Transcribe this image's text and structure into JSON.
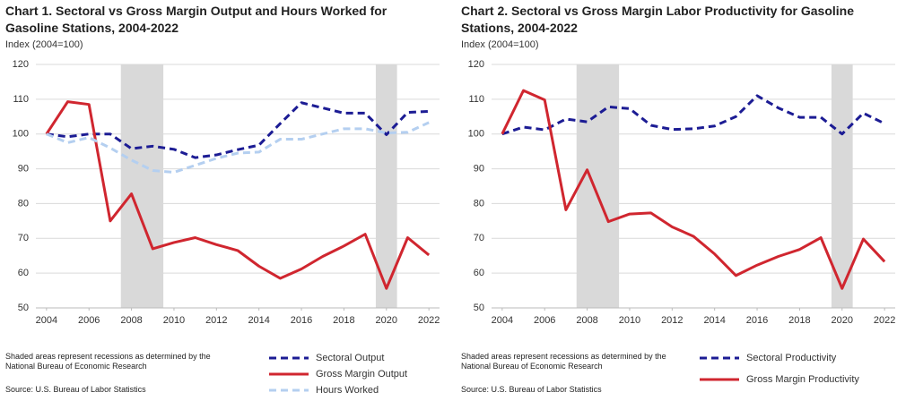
{
  "chart_data": [
    {
      "type": "line",
      "title": "Chart 1. Sectoral vs Gross Margin Output and Hours Worked for Gasoline Stations, 2004-2022",
      "y_label": "Index (2004=100)",
      "note": "Shaded areas represent recessions as determined by the National Bureau of Economic Research",
      "source": "Source: U.S. Bureau of Labor Statistics",
      "x": [
        2004,
        2005,
        2006,
        2007,
        2008,
        2009,
        2010,
        2011,
        2012,
        2013,
        2014,
        2015,
        2016,
        2017,
        2018,
        2019,
        2020,
        2021,
        2022
      ],
      "xlim": [
        2003.5,
        2022.5
      ],
      "xticks": [
        2004,
        2006,
        2008,
        2010,
        2012,
        2014,
        2016,
        2018,
        2020,
        2022
      ],
      "ylim": [
        50,
        120
      ],
      "yticks": [
        50,
        60,
        70,
        80,
        90,
        100,
        110,
        120
      ],
      "grid": true,
      "recessions": [
        [
          2007.5,
          2009.5
        ],
        [
          2019.5,
          2020.5
        ]
      ],
      "series": [
        {
          "name": "Sectoral Output",
          "color": "#1c1c94",
          "dashed": true,
          "values": [
            100,
            99.2,
            100,
            100,
            95.8,
            96.5,
            95.6,
            93.2,
            94,
            95.5,
            96.8,
            103,
            109,
            107.5,
            106,
            106,
            99.8,
            106.2,
            106.5
          ]
        },
        {
          "name": "Gross Margin Output",
          "color": "#d0262f",
          "dashed": false,
          "values": [
            100,
            109.3,
            108.5,
            75,
            82.8,
            67,
            68.8,
            70.2,
            68.2,
            66.5,
            62,
            58.5,
            61.2,
            64.8,
            67.8,
            71.2,
            55.6,
            70.2,
            65.2
          ]
        },
        {
          "name": "Hours Worked",
          "color": "#b4cff0",
          "dashed": true,
          "values": [
            100,
            97.5,
            99,
            96,
            92.5,
            89.5,
            89,
            91,
            93,
            94.5,
            94.8,
            98.5,
            98.5,
            100,
            101.5,
            101.5,
            100.3,
            100.5,
            103.3
          ]
        }
      ]
    },
    {
      "type": "line",
      "title": "Chart 2. Sectoral vs Gross Margin Labor Productivity for Gasoline Stations, 2004-2022",
      "y_label": "Index (2004=100)",
      "note": "Shaded areas represent recessions as determined by the National Bureau of Economic Research",
      "source": "Source: U.S. Bureau of Labor Statistics",
      "x": [
        2004,
        2005,
        2006,
        2007,
        2008,
        2009,
        2010,
        2011,
        2012,
        2013,
        2014,
        2015,
        2016,
        2017,
        2018,
        2019,
        2020,
        2021,
        2022
      ],
      "xlim": [
        2003.5,
        2022.5
      ],
      "xticks": [
        2004,
        2006,
        2008,
        2010,
        2012,
        2014,
        2016,
        2018,
        2020,
        2022
      ],
      "ylim": [
        50,
        120
      ],
      "yticks": [
        50,
        60,
        70,
        80,
        90,
        100,
        110,
        120
      ],
      "grid": true,
      "recessions": [
        [
          2007.5,
          2009.5
        ],
        [
          2019.5,
          2020.5
        ]
      ],
      "series": [
        {
          "name": "Sectoral Productivity",
          "color": "#1c1c94",
          "dashed": true,
          "values": [
            100,
            102,
            101.2,
            104.3,
            103.5,
            107.8,
            107.3,
            102.5,
            101.3,
            101.5,
            102.3,
            105,
            111,
            107.5,
            104.8,
            104.8,
            100,
            106,
            103
          ]
        },
        {
          "name": "Gross Margin Productivity",
          "color": "#d0262f",
          "dashed": false,
          "values": [
            100,
            112.5,
            109.8,
            78.2,
            89.7,
            74.8,
            77,
            77.3,
            73.3,
            70.6,
            65.5,
            59.3,
            62.3,
            64.8,
            66.8,
            70.2,
            55.6,
            69.8,
            63.3
          ]
        }
      ]
    }
  ]
}
